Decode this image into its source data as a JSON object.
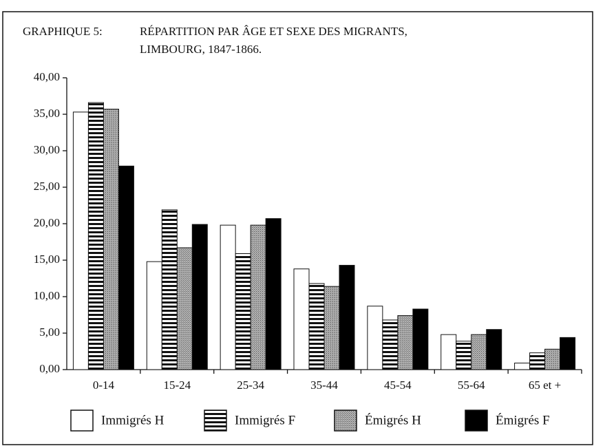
{
  "chart_data": {
    "type": "bar",
    "title_label": "GRAPHIQUE 5:",
    "title": [
      "RÉPARTITION PAR ÂGE ET SEXE DES MIGRANTS,",
      "LIMBOURG, 1847-1866."
    ],
    "categories": [
      "0-14",
      "15-24",
      "25-34",
      "35-44",
      "45-54",
      "55-64",
      "65 et +"
    ],
    "series": [
      {
        "name": "Immigrés H",
        "color": "#ffffff",
        "pattern": "solid",
        "values": [
          35.3,
          14.8,
          19.8,
          13.8,
          8.7,
          4.8,
          0.9
        ]
      },
      {
        "name": "Immigrés F",
        "color": "#ffffff",
        "pattern": "horizontal-stripes",
        "values": [
          36.6,
          21.9,
          15.9,
          11.8,
          6.8,
          3.9,
          2.3
        ]
      },
      {
        "name": "Émigrés H",
        "color": "#9a9a9a",
        "pattern": "stipple",
        "values": [
          35.7,
          16.7,
          19.8,
          11.4,
          7.4,
          4.8,
          2.8
        ]
      },
      {
        "name": "Émigrés F",
        "color": "#000000",
        "pattern": "solid",
        "values": [
          27.9,
          19.9,
          20.7,
          14.3,
          8.3,
          5.5,
          4.4
        ]
      }
    ],
    "ylim": [
      0,
      40
    ],
    "yticks": [
      {
        "value": 0,
        "label": "0,00"
      },
      {
        "value": 5,
        "label": "5,00"
      },
      {
        "value": 10,
        "label": "10,00"
      },
      {
        "value": 15,
        "label": "15,00"
      },
      {
        "value": 20,
        "label": "20,00"
      },
      {
        "value": 25,
        "label": "25,00"
      },
      {
        "value": 30,
        "label": "30,00"
      },
      {
        "value": 35,
        "label": "35,00"
      },
      {
        "value": 40,
        "label": "40,00"
      }
    ],
    "grid": false
  }
}
